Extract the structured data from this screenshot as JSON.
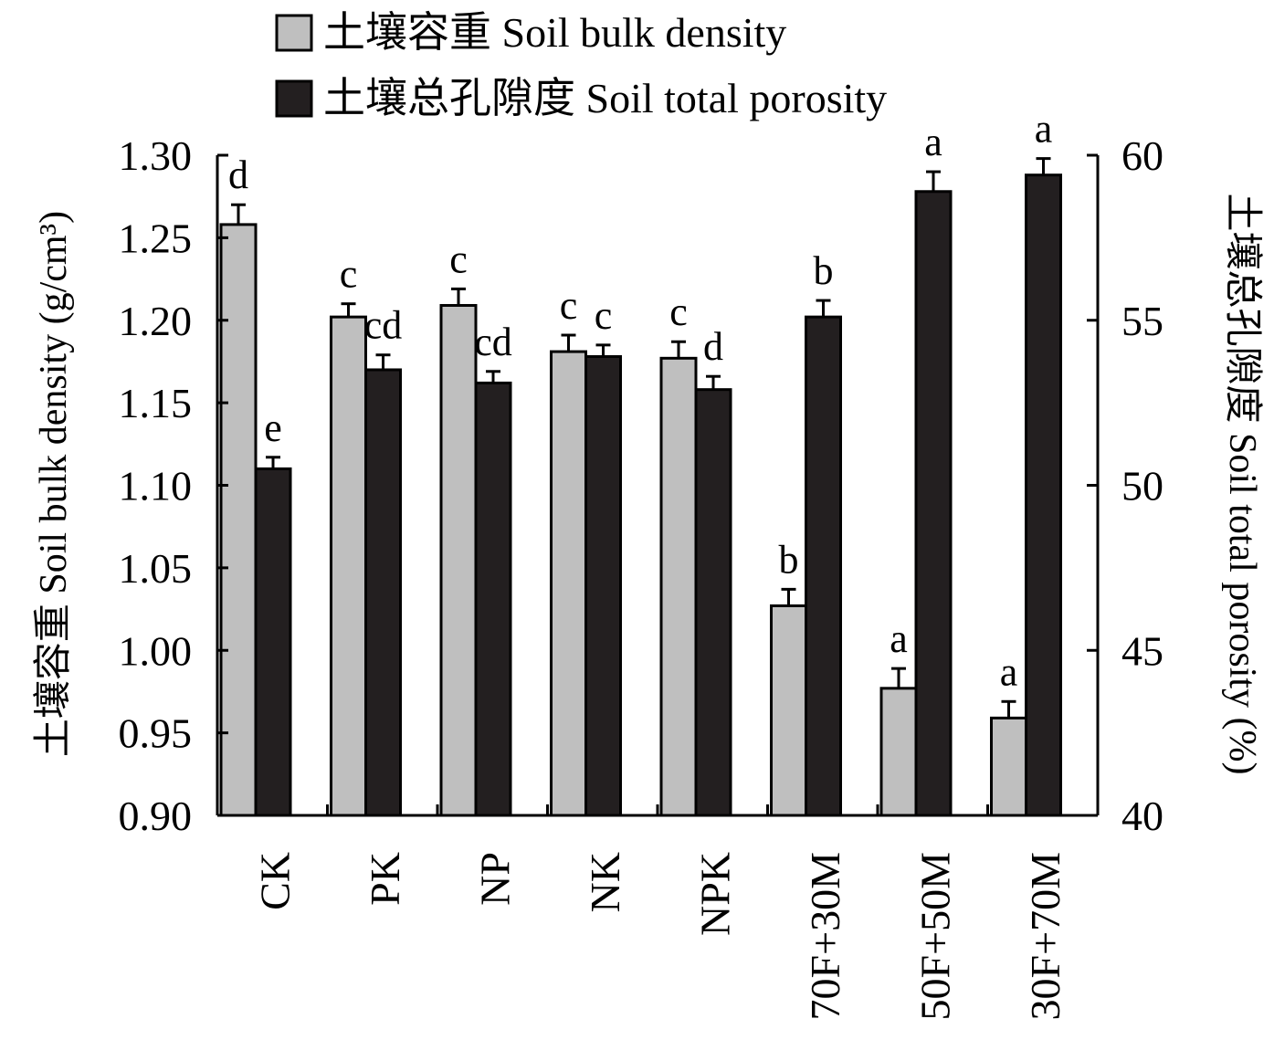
{
  "chart_data": {
    "type": "bar",
    "categories": [
      "CK",
      "PK",
      "NP",
      "NK",
      "NPK",
      "70F+30M",
      "50F+50M",
      "30F+70M"
    ],
    "title": "",
    "xlabel": "",
    "ylabel_left": "土壤容重 Soil bulk density (g/cm³)",
    "ylabel_right": "土壤总孔隙度 Soil total porosity (%)",
    "ylim_left": [
      0.9,
      1.3
    ],
    "ylim_right": [
      40,
      60
    ],
    "yticks_left": [
      "0.90",
      "0.95",
      "1.00",
      "1.05",
      "1.10",
      "1.15",
      "1.20",
      "1.25",
      "1.30"
    ],
    "yticks_right": [
      "40",
      "45",
      "50",
      "55",
      "60"
    ],
    "legend_position": "top",
    "grid": false,
    "series": [
      {
        "name": "土壤容重 Soil bulk density",
        "axis": "left",
        "color": "#bfbfbf",
        "values": [
          1.258,
          1.202,
          1.209,
          1.181,
          1.177,
          1.027,
          0.977,
          0.959
        ],
        "errors": [
          0.012,
          0.008,
          0.01,
          0.01,
          0.01,
          0.01,
          0.012,
          0.01
        ],
        "labels": [
          "d",
          "c",
          "c",
          "c",
          "c",
          "b",
          "a",
          "a"
        ]
      },
      {
        "name": "土壤总孔隙度 Soil total porosity",
        "axis": "right",
        "color": "#231f20",
        "values": [
          50.5,
          53.5,
          53.1,
          53.9,
          52.9,
          55.1,
          58.9,
          59.4
        ],
        "errors": [
          0.35,
          0.45,
          0.35,
          0.35,
          0.4,
          0.5,
          0.6,
          0.5
        ],
        "labels": [
          "e",
          "cd",
          "cd",
          "c",
          "d",
          "b",
          "a",
          "a"
        ]
      }
    ]
  }
}
